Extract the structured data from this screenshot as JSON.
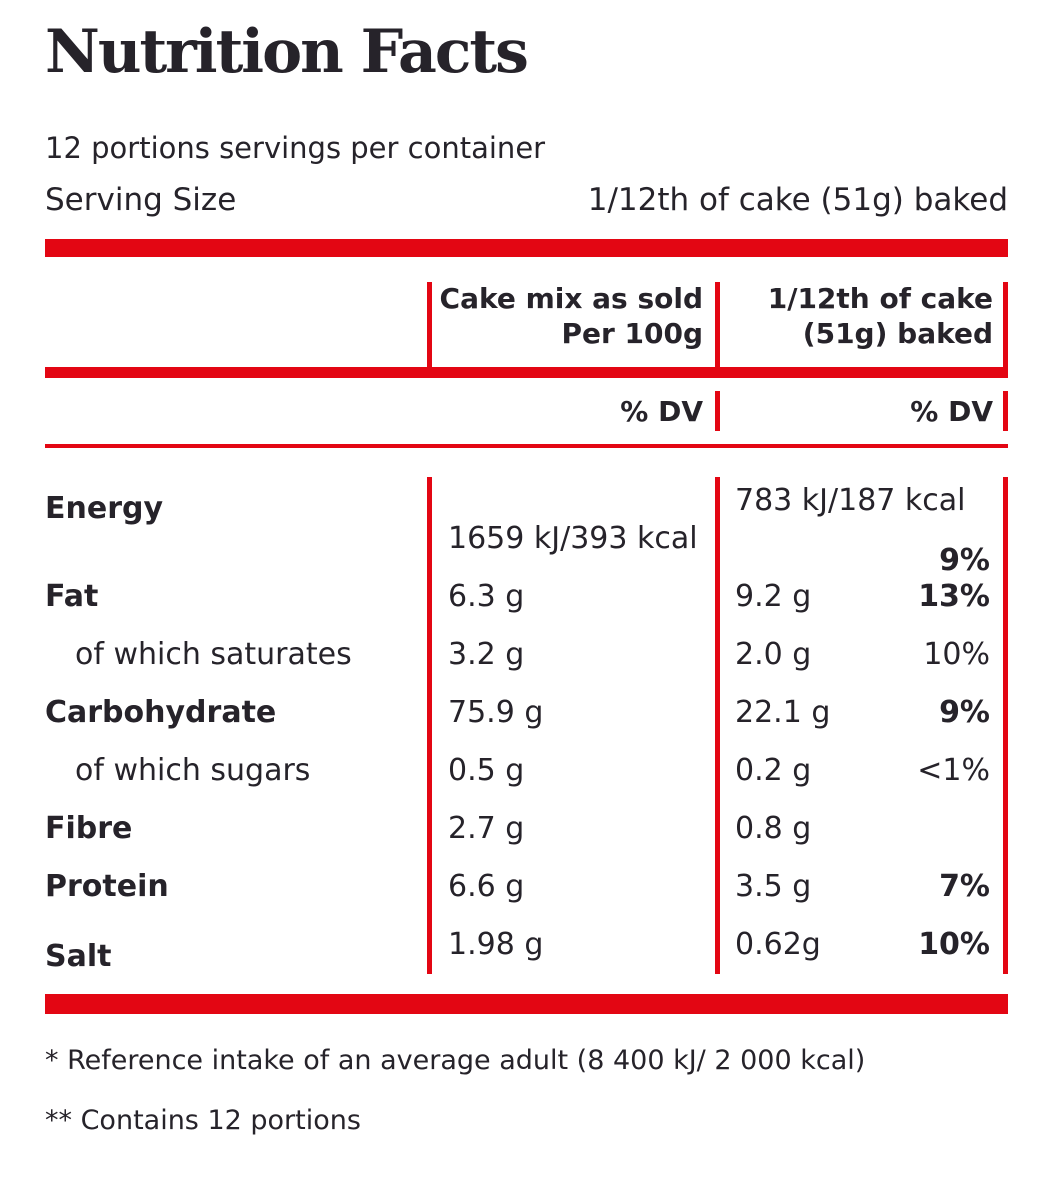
{
  "colors": {
    "accent_red": "#e30613",
    "text": "#26232a"
  },
  "header": {
    "title": "Nutrition Facts",
    "servings_per_container": "12 portions servings per container",
    "serving_size_label": "Serving Size",
    "serving_size_value": "1/12th of cake (51g) baked"
  },
  "table": {
    "column_headers": {
      "per100": {
        "line1": "Cake mix as sold",
        "line2": "Per 100g"
      },
      "serving": {
        "line1": "1/12th of cake",
        "line2": "(51g) baked"
      }
    },
    "dv_headers": {
      "per100": "% DV",
      "serving": "% DV"
    },
    "rows": [
      {
        "label": "Energy",
        "per_100g": "1659 kJ/393 kcal",
        "per_serving": "783 kJ/187 kcal",
        "dv": "9%"
      },
      {
        "label": "Fat",
        "per_100g": "6.3 g",
        "per_serving": "9.2 g",
        "dv": "13%"
      },
      {
        "label": "of which saturates",
        "per_100g": "3.2 g",
        "per_serving": "2.0 g",
        "dv": "10%"
      },
      {
        "label": "Carbohydrate",
        "per_100g": "75.9 g",
        "per_serving": "22.1 g",
        "dv": "9%"
      },
      {
        "label": "of which sugars",
        "per_100g": "0.5 g",
        "per_serving": "0.2 g",
        "dv": "<1%"
      },
      {
        "label": "Fibre",
        "per_100g": "2.7 g",
        "per_serving": "0.8 g",
        "dv": ""
      },
      {
        "label": "Protein",
        "per_100g": "6.6 g",
        "per_serving": "3.5 g",
        "dv": "7%"
      },
      {
        "label": "Salt",
        "per_100g": "1.98 g",
        "per_serving": "0.62g",
        "dv": "10%"
      }
    ]
  },
  "footnotes": {
    "reference_intake": "* Reference intake of an average adult (8 400 kJ/ 2 000 kcal)",
    "contains": "** Contains 12 portions"
  }
}
